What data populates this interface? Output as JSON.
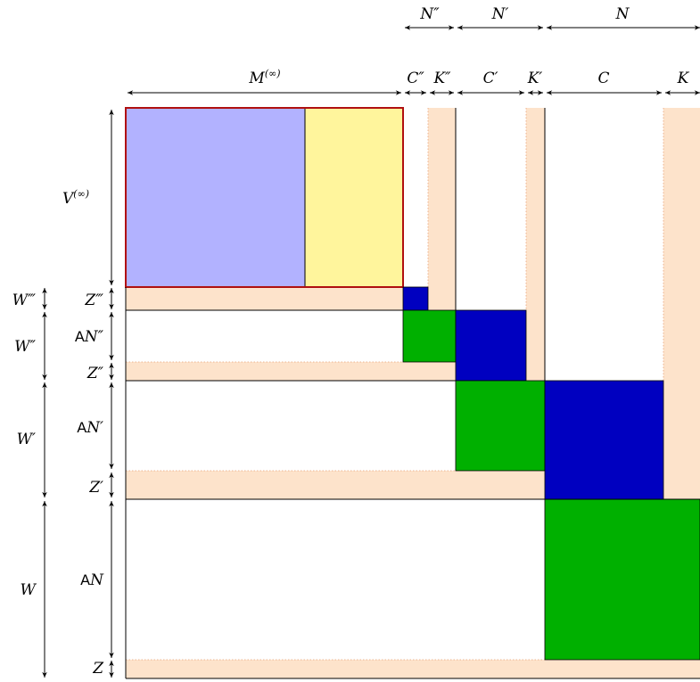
{
  "diagram": {
    "colors": {
      "peach": "#fde3cb",
      "blue_light": "#b2b2ff",
      "yellow": "#fff59c",
      "blue": "#0000c0",
      "green": "#00b000",
      "red_border": "#b01010",
      "line": "#000000"
    },
    "top_dims": {
      "n2": "N″",
      "n1": "N′",
      "n0": "N"
    },
    "col_dims": {
      "m_inf": {
        "base": "M",
        "sup": "(∞)"
      },
      "c2": "C″",
      "k2": "K″",
      "c1": "C′",
      "k1": "K′",
      "c0": "C",
      "k0": "K"
    },
    "row_dims": {
      "v_inf": {
        "base": "V",
        "sup": "(∞)"
      },
      "z3": "Z‴",
      "an2": {
        "prefix": "A",
        "base": "N″"
      },
      "z2": "Z″",
      "an1": {
        "prefix": "A",
        "base": "N′"
      },
      "z1": "Z′",
      "an0": {
        "prefix": "A",
        "base": "N"
      },
      "z0": "Z"
    },
    "outer_dims": {
      "w3": "W‴",
      "w2": "W″",
      "w1": "W′",
      "w0": "W"
    }
  }
}
